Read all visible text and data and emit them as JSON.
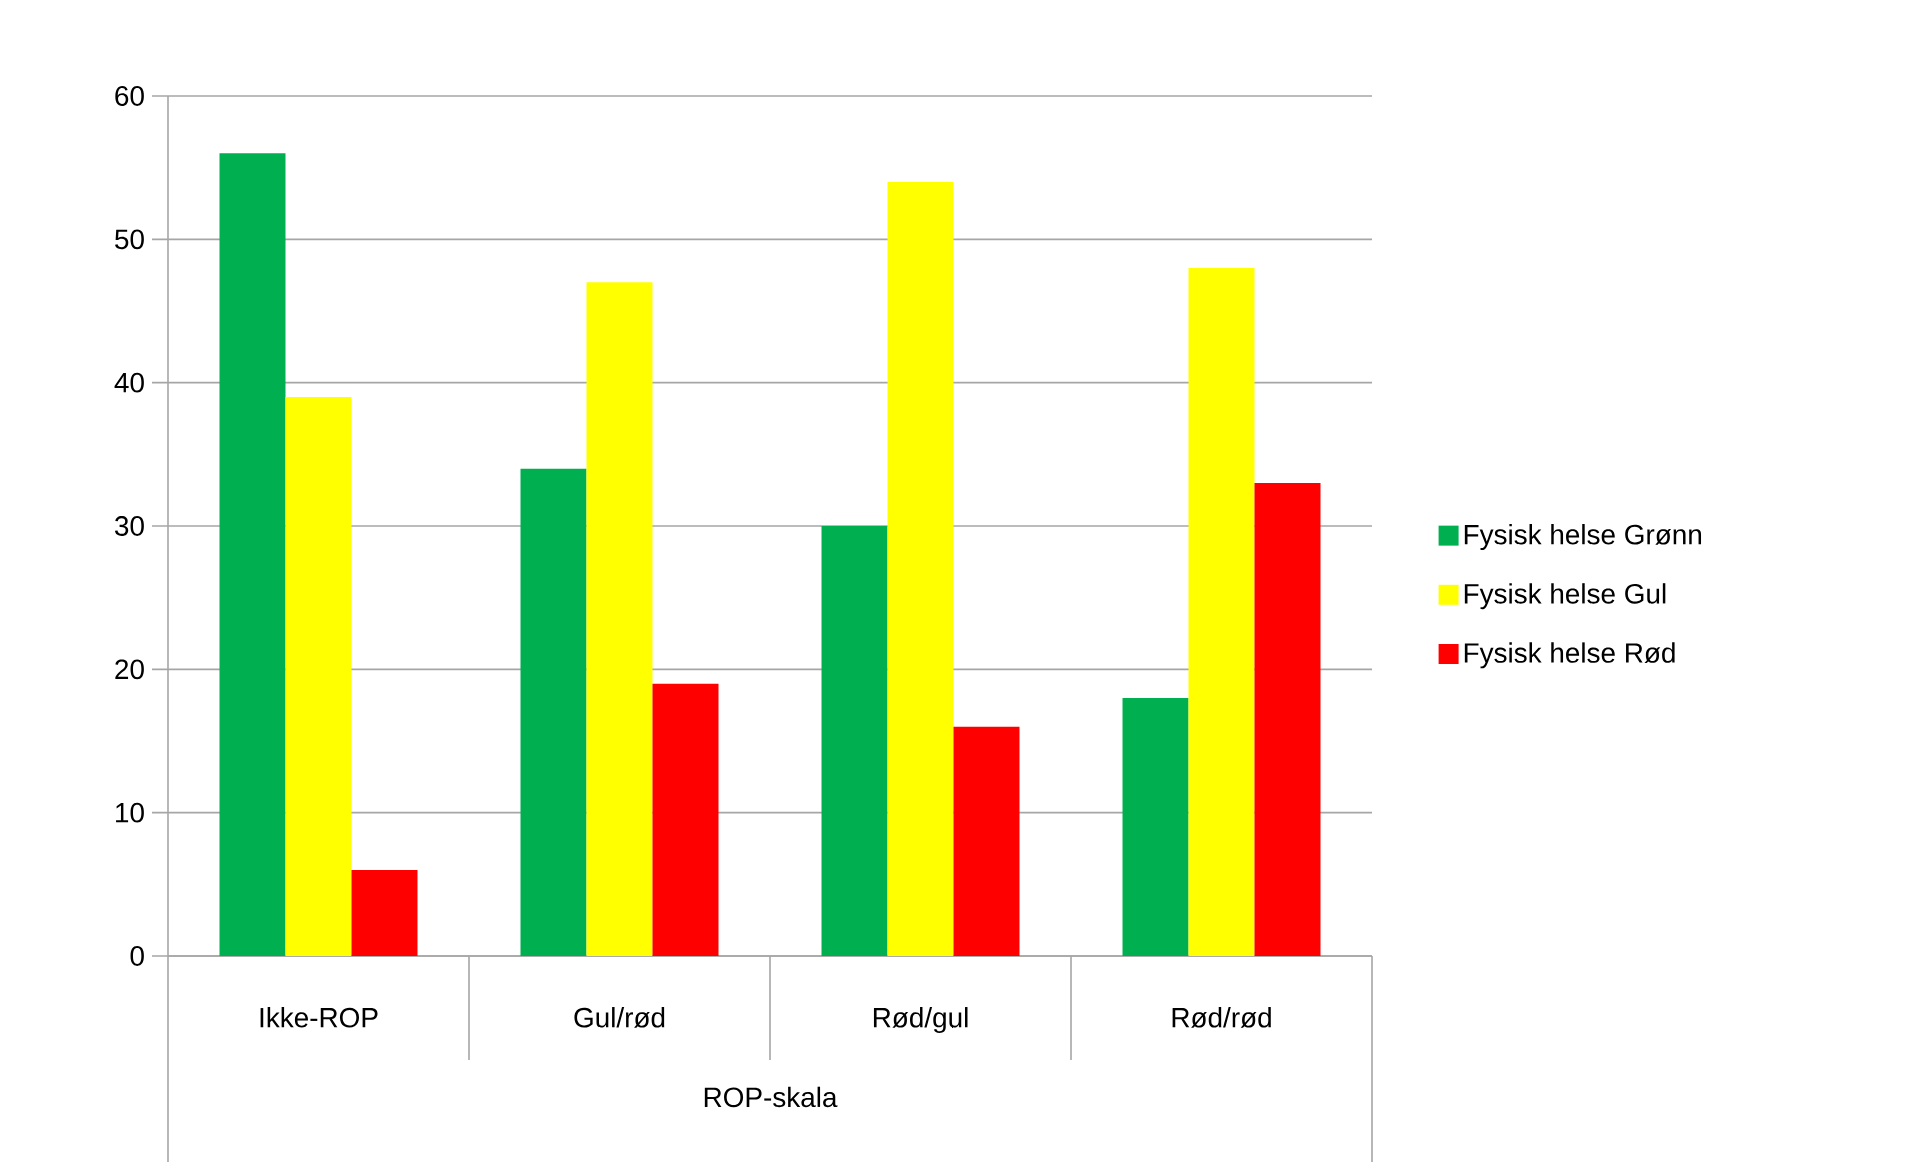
{
  "chart_data": {
    "type": "bar",
    "xlabel": "ROP-skala",
    "categories": [
      "Ikke-ROP",
      "Gul/rød",
      "Rød/gul",
      "Rød/rød"
    ],
    "series": [
      {
        "name": "Fysisk helse Grønn",
        "color": "#00b050",
        "values": [
          56,
          34,
          30,
          18
        ]
      },
      {
        "name": "Fysisk helse Gul",
        "color": "#ffff00",
        "values": [
          39,
          47,
          54,
          48
        ]
      },
      {
        "name": "Fysisk helse Rød",
        "color": "#ff0000",
        "values": [
          6,
          19,
          16,
          33
        ]
      }
    ],
    "ylim": [
      0,
      60
    ],
    "yticks": [
      0,
      10,
      20,
      30,
      40,
      50,
      60
    ],
    "grid": "y",
    "legend": "right"
  }
}
